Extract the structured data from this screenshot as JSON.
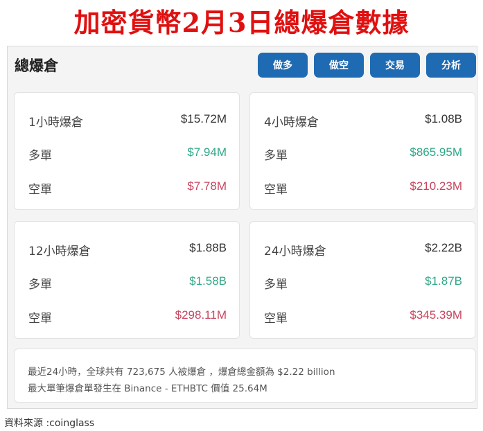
{
  "headline": "加密貨幣2月3日總爆倉數據",
  "panel": {
    "title": "總爆倉",
    "buttons": [
      "做多",
      "做空",
      "交易",
      "分析"
    ],
    "cards": [
      {
        "label": "1小時爆倉",
        "total": "$15.72M",
        "long_label": "多單",
        "long": "$7.94M",
        "short_label": "空單",
        "short": "$7.78M"
      },
      {
        "label": "4小時爆倉",
        "total": "$1.08B",
        "long_label": "多單",
        "long": "$865.95M",
        "short_label": "空單",
        "short": "$210.23M"
      },
      {
        "label": "12小時爆倉",
        "total": "$1.88B",
        "long_label": "多單",
        "long": "$1.58B",
        "short_label": "空單",
        "short": "$298.11M"
      },
      {
        "label": "24小時爆倉",
        "total": "$2.22B",
        "long_label": "多單",
        "long": "$1.87B",
        "short_label": "空單",
        "short": "$345.39M"
      }
    ],
    "summary": [
      "最近24小時，全球共有 723,675 人被爆倉 ，爆倉總金額為 $2.22 billion",
      "最大單筆爆倉單發生在 Binance - ETHBTC 價值 25.64M"
    ]
  },
  "source": "資料來源 :coinglass",
  "colors": {
    "headline": "#e01010",
    "button": "#1f6bb3",
    "long": "#2fa887",
    "short": "#c8455e"
  }
}
